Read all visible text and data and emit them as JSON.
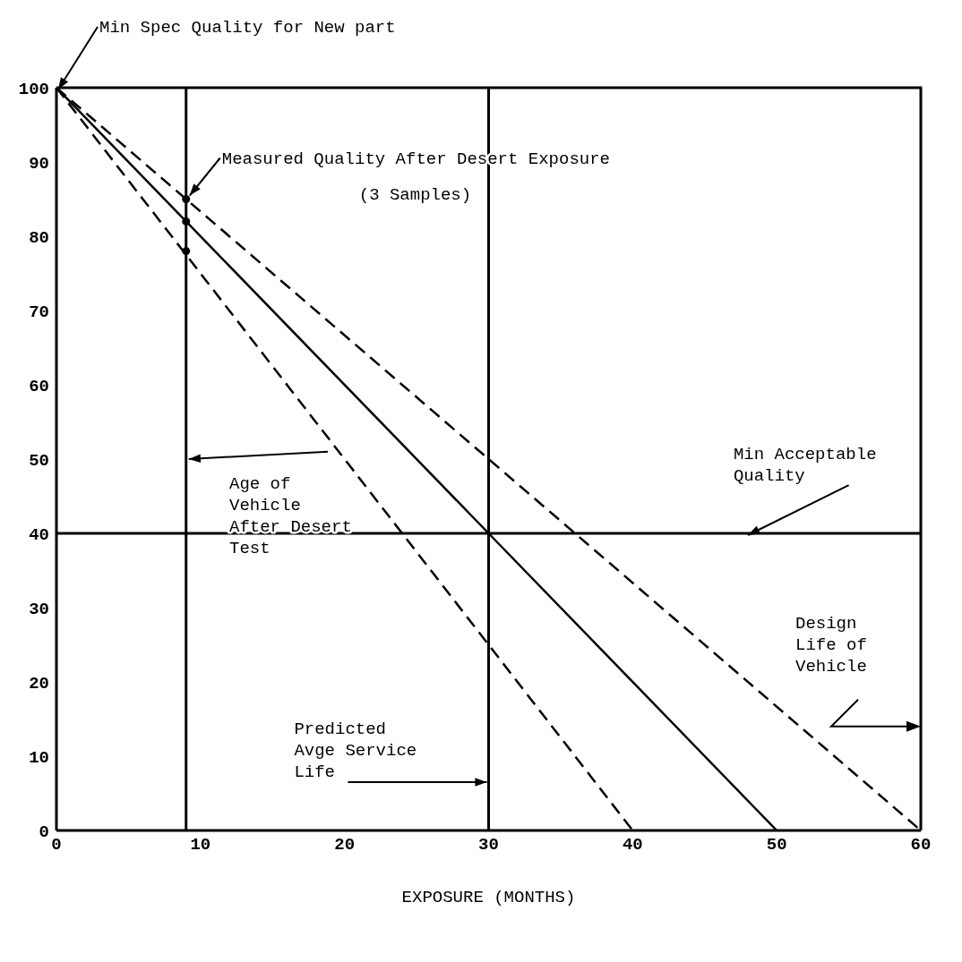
{
  "chart_data": {
    "type": "line",
    "xlabel": "EXPOSURE  (MONTHS)",
    "xlim": [
      0,
      60
    ],
    "ylim": [
      0,
      100
    ],
    "xticks": [
      0,
      10,
      20,
      30,
      40,
      50,
      60
    ],
    "yticks": [
      0,
      10,
      20,
      30,
      40,
      50,
      60,
      70,
      80,
      90,
      100
    ],
    "series": [
      {
        "color": "#000000",
        "line_style": "solid",
        "x": [
          0,
          30,
          50
        ],
        "values": [
          100,
          40,
          0
        ]
      },
      {
        "color": "#000000",
        "line_style": "dashed",
        "x": [
          0,
          30,
          60
        ],
        "values": [
          100,
          50,
          0
        ]
      },
      {
        "color": "#000000",
        "line_style": "dashed",
        "x": [
          0,
          40
        ],
        "values": [
          100,
          0
        ]
      },
      {
        "type": "scatter",
        "color": "#000000",
        "marker": "circle",
        "x": [
          9,
          9,
          9
        ],
        "values": [
          85,
          82,
          78
        ]
      }
    ],
    "ref_lines": [
      {
        "axis": "x",
        "value": 9,
        "label": "Age of Vehicle After Desert Test"
      },
      {
        "axis": "x",
        "value": 30,
        "label": "Predicted Avge Service Life"
      },
      {
        "axis": "y",
        "value": 40,
        "label": "Min Acceptable Quality"
      }
    ],
    "annotations": [
      {
        "text": "Min Spec Quality for New part",
        "x": 0,
        "y": 100
      },
      {
        "text": "Measured Quality After Desert Exposure",
        "x": 9,
        "y": 85
      },
      "(3 Samples)",
      "Design Life of Vehicle"
    ]
  }
}
